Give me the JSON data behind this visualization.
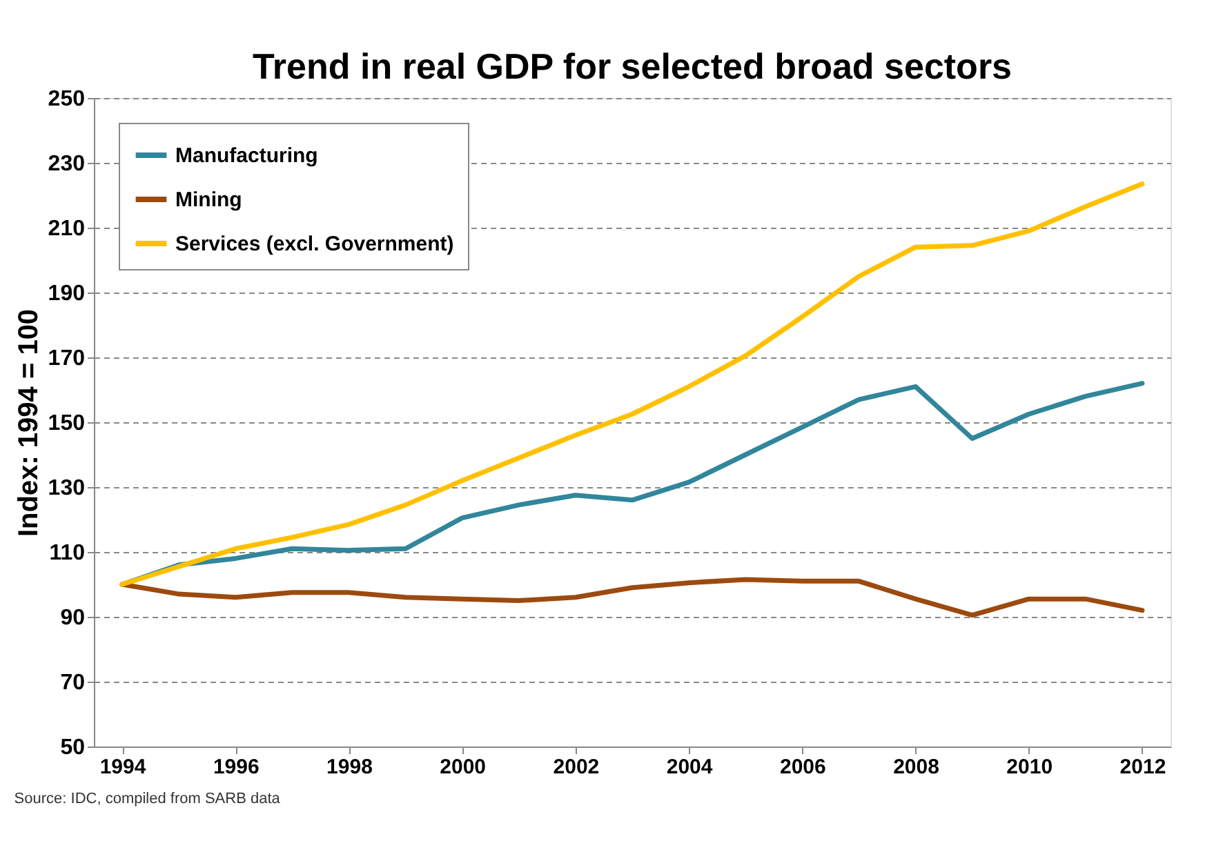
{
  "chart_data": {
    "type": "line",
    "title": "Trend in real GDP for selected broad sectors",
    "ylabel": "Index: 1994 = 100",
    "x": [
      1994,
      1995,
      1996,
      1997,
      1998,
      1999,
      2000,
      2001,
      2002,
      2003,
      2004,
      2005,
      2006,
      2007,
      2008,
      2009,
      2010,
      2011,
      2012
    ],
    "series": [
      {
        "name": "Manufacturing",
        "color": "#31869b",
        "values": [
          100,
          106,
          108,
          111,
          110.5,
          111,
          120.5,
          124.5,
          127.5,
          126,
          131.5,
          140,
          148.5,
          157,
          161,
          145,
          152.5,
          158,
          162
        ]
      },
      {
        "name": "Mining",
        "color": "#9c4a0f",
        "values": [
          100,
          97,
          96,
          97.5,
          97.5,
          96,
          95.5,
          95,
          96,
          99,
          100.5,
          101.5,
          101,
          101,
          95.5,
          90.5,
          95.5,
          95.5,
          92
        ]
      },
      {
        "name": "Services (excl. Government)",
        "color": "#ffc000",
        "values": [
          100,
          105.5,
          111,
          114.5,
          118.5,
          124.5,
          132,
          139,
          146,
          152.5,
          161,
          170.5,
          182.5,
          195,
          204,
          204.5,
          209,
          216.5,
          223.5
        ]
      }
    ],
    "xlim": [
      1993.5,
      2012.5
    ],
    "xticks": [
      1994,
      1996,
      1998,
      2000,
      2002,
      2004,
      2006,
      2008,
      2010,
      2012
    ],
    "ylim": [
      50,
      250
    ],
    "yticks": [
      50,
      70,
      90,
      110,
      130,
      150,
      170,
      190,
      210,
      230,
      250
    ],
    "grid": "y",
    "legend": "top left",
    "marker": "none",
    "line_style": "solid",
    "annotations": [
      "Source: IDC, compiled from SARB data"
    ]
  }
}
